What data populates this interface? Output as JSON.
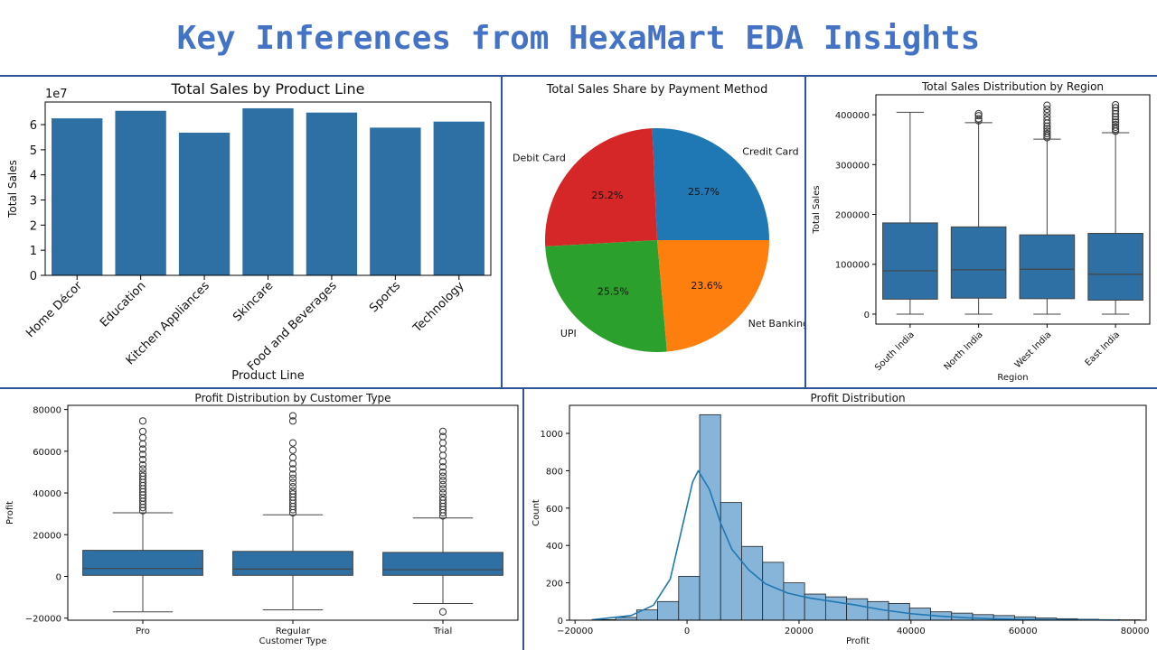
{
  "slide": {
    "title": "Key Inferences from HexaMart EDA Insights"
  },
  "colors": {
    "title": "#4472c4",
    "rule": "#2f5597",
    "bar": "#2e6fa4",
    "hist": "#86b5d9",
    "kde": "#1f77b4"
  },
  "chart_data": [
    {
      "type": "bar",
      "title": "Total Sales by Product Line",
      "xlabel": "Product Line",
      "ylabel": "Total Sales",
      "scale_label": "1e7",
      "categories": [
        "Home Décor",
        "Education",
        "Kitchen Appliances",
        "Skincare",
        "Food and Beverages",
        "Sports",
        "Technology"
      ],
      "values": [
        6.25,
        6.55,
        5.68,
        6.65,
        6.48,
        5.88,
        6.12
      ],
      "ylim": [
        0,
        6.9
      ],
      "yticks": [
        0,
        1,
        2,
        3,
        4,
        5,
        6
      ]
    },
    {
      "type": "pie",
      "title": "Total Sales Share by Payment Method",
      "slices": [
        {
          "label": "Credit Card",
          "pct_label": "25.7%",
          "value": 25.7,
          "color": "#1f77b4"
        },
        {
          "label": "Debit Card",
          "pct_label": "25.2%",
          "value": 25.2,
          "color": "#d62728"
        },
        {
          "label": "UPI",
          "pct_label": "25.5%",
          "value": 25.5,
          "color": "#2ca02c"
        },
        {
          "label": "Net Banking",
          "pct_label": "23.6%",
          "value": 23.6,
          "color": "#ff7f0e"
        }
      ]
    },
    {
      "type": "box",
      "title": "Total Sales Distribution by Region",
      "xlabel": "Region",
      "ylabel": "Total Sales",
      "ylim": [
        -20000,
        440000
      ],
      "yticks": [
        0,
        100000,
        200000,
        300000,
        400000
      ],
      "ytick_labels": [
        "0",
        "100000",
        "200000",
        "300000",
        "400000"
      ],
      "boxes": [
        {
          "label": "South India",
          "min": 0,
          "q1": 30000,
          "median": 87000,
          "q3": 183000,
          "max": 405000,
          "outliers": []
        },
        {
          "label": "North India",
          "min": 0,
          "q1": 32000,
          "median": 89000,
          "q3": 175000,
          "max": 384000,
          "outliers": [
            388000,
            392000,
            398000,
            402000
          ]
        },
        {
          "label": "West India",
          "min": 0,
          "q1": 31000,
          "median": 90000,
          "q3": 159000,
          "max": 351000,
          "outliers": [
            354000,
            358000,
            362000,
            367000,
            372000,
            377000,
            383000,
            389000,
            396000,
            404000,
            411000,
            419000
          ]
        },
        {
          "label": "East India",
          "min": 0,
          "q1": 28000,
          "median": 80000,
          "q3": 162000,
          "max": 364000,
          "outliers": [
            367000,
            371000,
            375000,
            380000,
            385000,
            390000,
            396000,
            402000,
            408000,
            414000,
            420000
          ]
        }
      ]
    },
    {
      "type": "box",
      "title": "Profit Distribution by Customer Type",
      "xlabel": "Customer Type",
      "ylabel": "Profit",
      "ylim": [
        -21000,
        82000
      ],
      "yticks": [
        -20000,
        0,
        20000,
        40000,
        60000,
        80000
      ],
      "ytick_labels": [
        "−20000",
        "0",
        "20000",
        "40000",
        "60000",
        "80000"
      ],
      "boxes": [
        {
          "label": "Pro",
          "min": -17000,
          "q1": 500,
          "median": 3800,
          "q3": 12500,
          "max": 30500,
          "outliers": [
            31500,
            33000,
            34500,
            36000,
            37500,
            39000,
            40500,
            42000,
            43500,
            45000,
            46500,
            48000,
            49500,
            51500,
            53500,
            56000,
            58500,
            61000,
            63500,
            66500,
            69500,
            74500
          ]
        },
        {
          "label": "Regular",
          "min": -16000,
          "q1": 500,
          "median": 3500,
          "q3": 12000,
          "max": 29500,
          "outliers": [
            30500,
            32000,
            33500,
            35000,
            36500,
            38000,
            39500,
            41000,
            43000,
            45000,
            47000,
            49000,
            51500,
            54000,
            57000,
            60500,
            64000,
            74500,
            77000
          ]
        },
        {
          "label": "Trial",
          "min": -13000,
          "q1": 500,
          "median": 3200,
          "q3": 11500,
          "max": 28000,
          "outliers": [
            -17000,
            29000,
            30500,
            32000,
            33500,
            35000,
            36500,
            38000,
            40000,
            42000,
            44000,
            46000,
            48000,
            50000,
            52500,
            55000,
            58000,
            61000,
            64000,
            67000,
            69500
          ]
        }
      ]
    },
    {
      "type": "histogram",
      "title": "Profit Distribution",
      "xlabel": "Profit",
      "ylabel": "Count",
      "xlim": [
        -21000,
        82000
      ],
      "ylim": [
        0,
        1150
      ],
      "xticks": [
        -20000,
        0,
        20000,
        40000,
        60000,
        80000
      ],
      "xtick_labels": [
        "−20000",
        "0",
        "20000",
        "40000",
        "60000",
        "80000"
      ],
      "yticks": [
        0,
        200,
        400,
        600,
        800,
        1000
      ],
      "bin_start": -16500,
      "bin_width": 3750,
      "counts": [
        3,
        15,
        55,
        100,
        235,
        1100,
        630,
        395,
        310,
        200,
        140,
        125,
        115,
        100,
        90,
        65,
        45,
        38,
        30,
        25,
        18,
        12,
        8,
        5,
        3,
        2
      ],
      "kde": [
        [
          -17000,
          2
        ],
        [
          -10000,
          25
        ],
        [
          -6000,
          80
        ],
        [
          -3000,
          220
        ],
        [
          -1000,
          480
        ],
        [
          1000,
          740
        ],
        [
          2000,
          800
        ],
        [
          4000,
          700
        ],
        [
          6000,
          520
        ],
        [
          8000,
          380
        ],
        [
          11000,
          270
        ],
        [
          14000,
          195
        ],
        [
          18000,
          145
        ],
        [
          22000,
          118
        ],
        [
          26000,
          100
        ],
        [
          30000,
          82
        ],
        [
          35000,
          55
        ],
        [
          40000,
          35
        ],
        [
          45000,
          22
        ],
        [
          50000,
          13
        ],
        [
          55000,
          7
        ],
        [
          60000,
          4
        ],
        [
          70000,
          2
        ],
        [
          77000,
          1
        ]
      ]
    }
  ]
}
